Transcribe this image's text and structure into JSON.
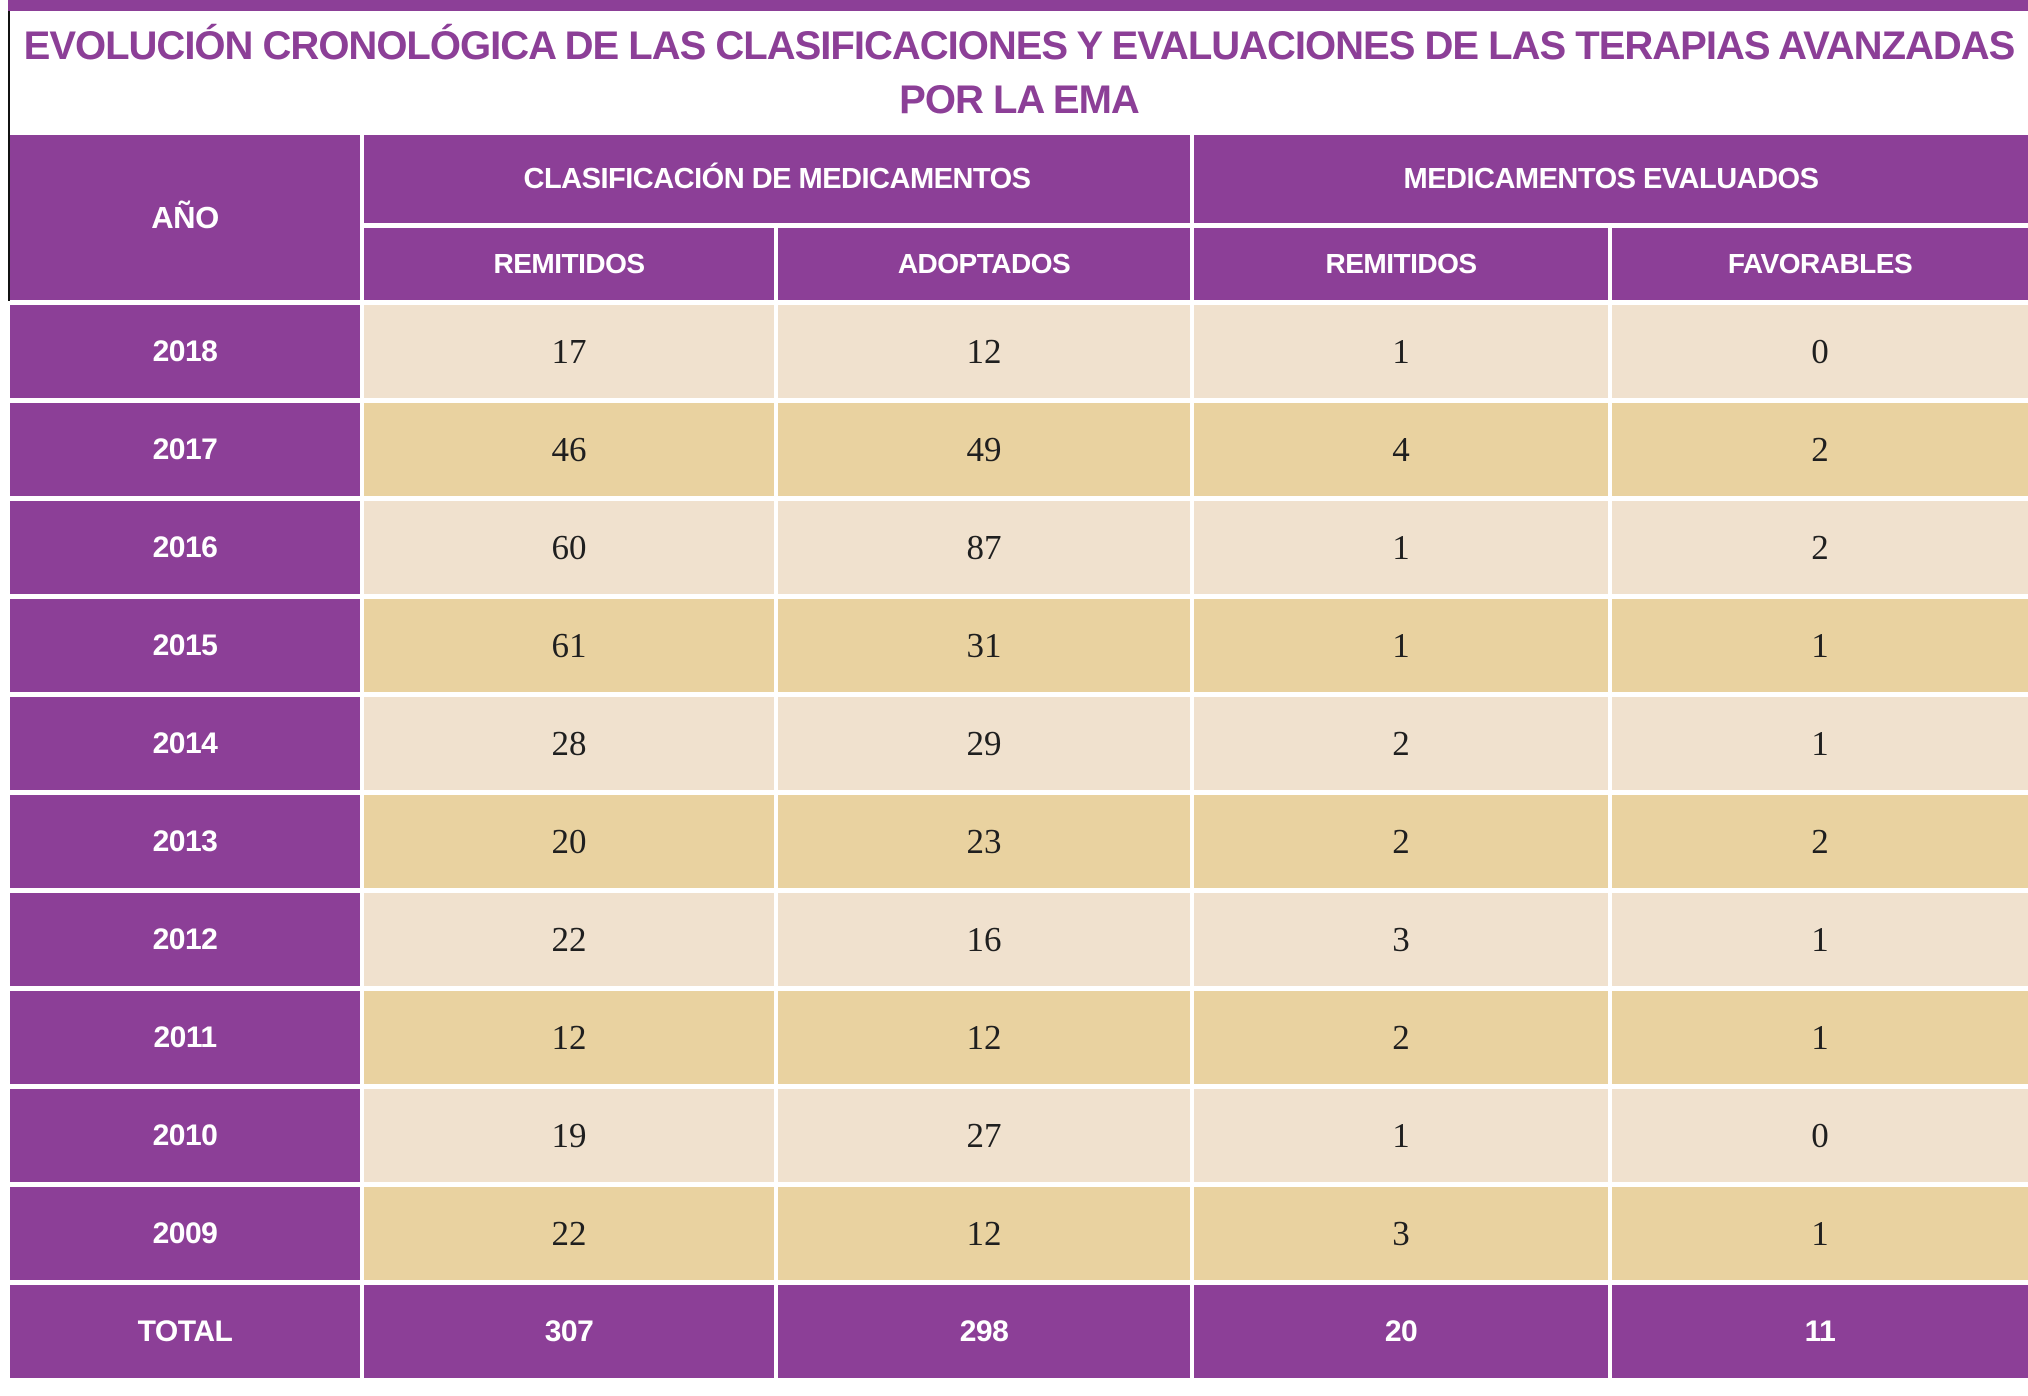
{
  "chart_data": {
    "type": "table",
    "title_line1": "EVOLUCIÓN CRONOLÓGICA DE LAS CLASIFICACIONES Y EVALUACIONES DE LAS TERAPIAS AVANZADAS",
    "title_line2": "POR LA EMA",
    "year_column_header": "AÑO",
    "group_headers": {
      "clasificacion": "CLASIFICACIÓN DE MEDICAMENTOS",
      "evaluados": "MEDICAMENTOS EVALUADOS"
    },
    "sub_headers": [
      "REMITIDOS",
      "ADOPTADOS",
      "REMITIDOS",
      "FAVORABLES"
    ],
    "rows": [
      {
        "year": "2018",
        "values": [
          "17",
          "12",
          "1",
          "0"
        ]
      },
      {
        "year": "2017",
        "values": [
          "46",
          "49",
          "4",
          "2"
        ]
      },
      {
        "year": "2016",
        "values": [
          "60",
          "87",
          "1",
          "2"
        ]
      },
      {
        "year": "2015",
        "values": [
          "61",
          "31",
          "1",
          "1"
        ]
      },
      {
        "year": "2014",
        "values": [
          "28",
          "29",
          "2",
          "1"
        ]
      },
      {
        "year": "2013",
        "values": [
          "20",
          "23",
          "2",
          "2"
        ]
      },
      {
        "year": "2012",
        "values": [
          "22",
          "16",
          "3",
          "1"
        ]
      },
      {
        "year": "2011",
        "values": [
          "12",
          "12",
          "2",
          "1"
        ]
      },
      {
        "year": "2010",
        "values": [
          "19",
          "27",
          "1",
          "0"
        ]
      },
      {
        "year": "2009",
        "values": [
          "22",
          "12",
          "3",
          "1"
        ]
      }
    ],
    "total_row": {
      "label": "TOTAL",
      "values": [
        "307",
        "298",
        "20",
        "11"
      ]
    }
  },
  "colors": {
    "purple": "#8c3f97",
    "cream": "#f0e1ce",
    "tan": "#e9d2a0",
    "ink": "#1f1f1f"
  }
}
